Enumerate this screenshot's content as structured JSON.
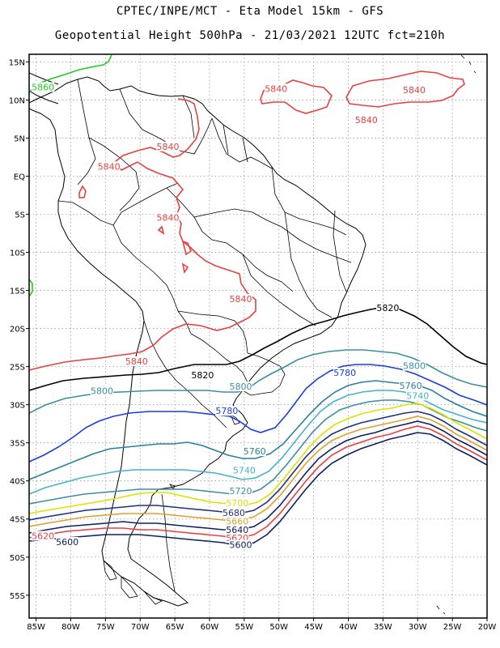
{
  "title_line1": "CPTEC/INPE/MCT -  Eta Model 15km - GFS",
  "title_line2": "Geopotential Height 500hPa - 21/03/2021 12UTC fct=210h",
  "lat_labels": [
    "15N",
    "10N",
    "5N",
    "EQ",
    "5S",
    "10S",
    "15S",
    "20S",
    "25S",
    "30S",
    "35S",
    "40S",
    "45S",
    "50S",
    "55S"
  ],
  "lon_labels": [
    "85W",
    "80W",
    "75W",
    "70W",
    "65W",
    "60W",
    "55W",
    "50W",
    "45W",
    "40W",
    "35W",
    "30W",
    "25W",
    "20W"
  ],
  "domain": {
    "lon_min": -86,
    "lon_max": -20,
    "lat_min": -58,
    "lat_max": 16
  },
  "contour_labels": [
    {
      "text": "5860",
      "lon": -84,
      "lat": 11.7,
      "color": "#22cc22"
    },
    {
      "text": "5840",
      "lon": -50.4,
      "lat": 11.5,
      "color": "#e84040"
    },
    {
      "text": "5840",
      "lon": -30.5,
      "lat": 11.3,
      "color": "#e84040"
    },
    {
      "text": "5840",
      "lon": -37.4,
      "lat": 7.4,
      "color": "#e84040"
    },
    {
      "text": "5840",
      "lon": -66,
      "lat": 3.9,
      "color": "#e84040"
    },
    {
      "text": "5840",
      "lon": -74.5,
      "lat": 1.3,
      "color": "#e84040"
    },
    {
      "text": "5840",
      "lon": -66,
      "lat": -5.4,
      "color": "#e84040"
    },
    {
      "text": "5840",
      "lon": -55.5,
      "lat": -16.1,
      "color": "#e84040"
    },
    {
      "text": "5840",
      "lon": -70.5,
      "lat": -24.3,
      "color": "#e84040"
    },
    {
      "text": "5820",
      "lon": -61,
      "lat": -26.1,
      "color": "#000000"
    },
    {
      "text": "5820",
      "lon": -34.3,
      "lat": -17.3,
      "color": "#000000"
    },
    {
      "text": "5800",
      "lon": -30.5,
      "lat": -24.9,
      "color": "#3a8fa6"
    },
    {
      "text": "5800",
      "lon": -75.5,
      "lat": -28.2,
      "color": "#3a8fa6"
    },
    {
      "text": "5800",
      "lon": -55.5,
      "lat": -27.6,
      "color": "#3a8fa6"
    },
    {
      "text": "5780",
      "lon": -40.5,
      "lat": -25.8,
      "color": "#1a3cdc"
    },
    {
      "text": "5780",
      "lon": -57.5,
      "lat": -30.8,
      "color": "#1a3cdc"
    },
    {
      "text": "5760",
      "lon": -31,
      "lat": -27.5,
      "color": "#2a7fa0"
    },
    {
      "text": "5760",
      "lon": -53.5,
      "lat": -36.1,
      "color": "#2a7fa0"
    },
    {
      "text": "5740",
      "lon": -30,
      "lat": -28.8,
      "color": "#45b3cc"
    },
    {
      "text": "5740",
      "lon": -55,
      "lat": -38.6,
      "color": "#45b3cc"
    },
    {
      "text": "5720",
      "lon": -55.5,
      "lat": -41.3,
      "color": "#3a8fa6"
    },
    {
      "text": "5700",
      "lon": -56,
      "lat": -42.9,
      "color": "#e0e000"
    },
    {
      "text": "5680",
      "lon": -56.5,
      "lat": -44.2,
      "color": "#203080"
    },
    {
      "text": "5660",
      "lon": -56,
      "lat": -45.3,
      "color": "#e0a030"
    },
    {
      "text": "5640",
      "lon": -56,
      "lat": -46.4,
      "color": "#102060"
    },
    {
      "text": "5620",
      "lon": -56,
      "lat": -47.5,
      "color": "#e84040"
    },
    {
      "text": "5620",
      "lon": -84,
      "lat": -47.2,
      "color": "#e84040"
    },
    {
      "text": "5600",
      "lon": -55.5,
      "lat": -48.4,
      "color": "#102060"
    },
    {
      "text": "5600",
      "lon": -80.5,
      "lat": -48.0,
      "color": "#102060"
    }
  ]
}
